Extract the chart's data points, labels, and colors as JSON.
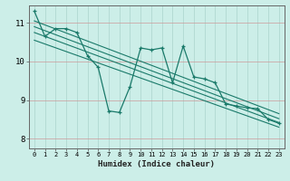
{
  "xlabel": "Humidex (Indice chaleur)",
  "ylabel": "",
  "bg_color": "#cceee8",
  "grid_color": "#aad4cc",
  "line_color": "#1a7a6a",
  "xlim": [
    -0.5,
    23.5
  ],
  "ylim": [
    7.75,
    11.45
  ],
  "yticks": [
    8,
    9,
    10,
    11
  ],
  "xticks": [
    0,
    1,
    2,
    3,
    4,
    5,
    6,
    7,
    8,
    9,
    10,
    11,
    12,
    13,
    14,
    15,
    16,
    17,
    18,
    19,
    20,
    21,
    22,
    23
  ],
  "main_series": [
    11.3,
    10.65,
    10.85,
    10.85,
    10.75,
    10.15,
    9.85,
    8.72,
    8.68,
    9.35,
    10.35,
    10.3,
    10.35,
    9.45,
    10.4,
    9.6,
    9.55,
    9.45,
    8.9,
    8.85,
    8.8,
    8.78,
    8.5,
    8.4
  ],
  "trend_lines": [
    {
      "x0": 0,
      "y0": 11.05,
      "x1": 23,
      "y1": 8.65
    },
    {
      "x0": 0,
      "y0": 10.9,
      "x1": 23,
      "y1": 8.52
    },
    {
      "x0": 0,
      "y0": 10.75,
      "x1": 23,
      "y1": 8.42
    },
    {
      "x0": 0,
      "y0": 10.55,
      "x1": 23,
      "y1": 8.3
    }
  ]
}
